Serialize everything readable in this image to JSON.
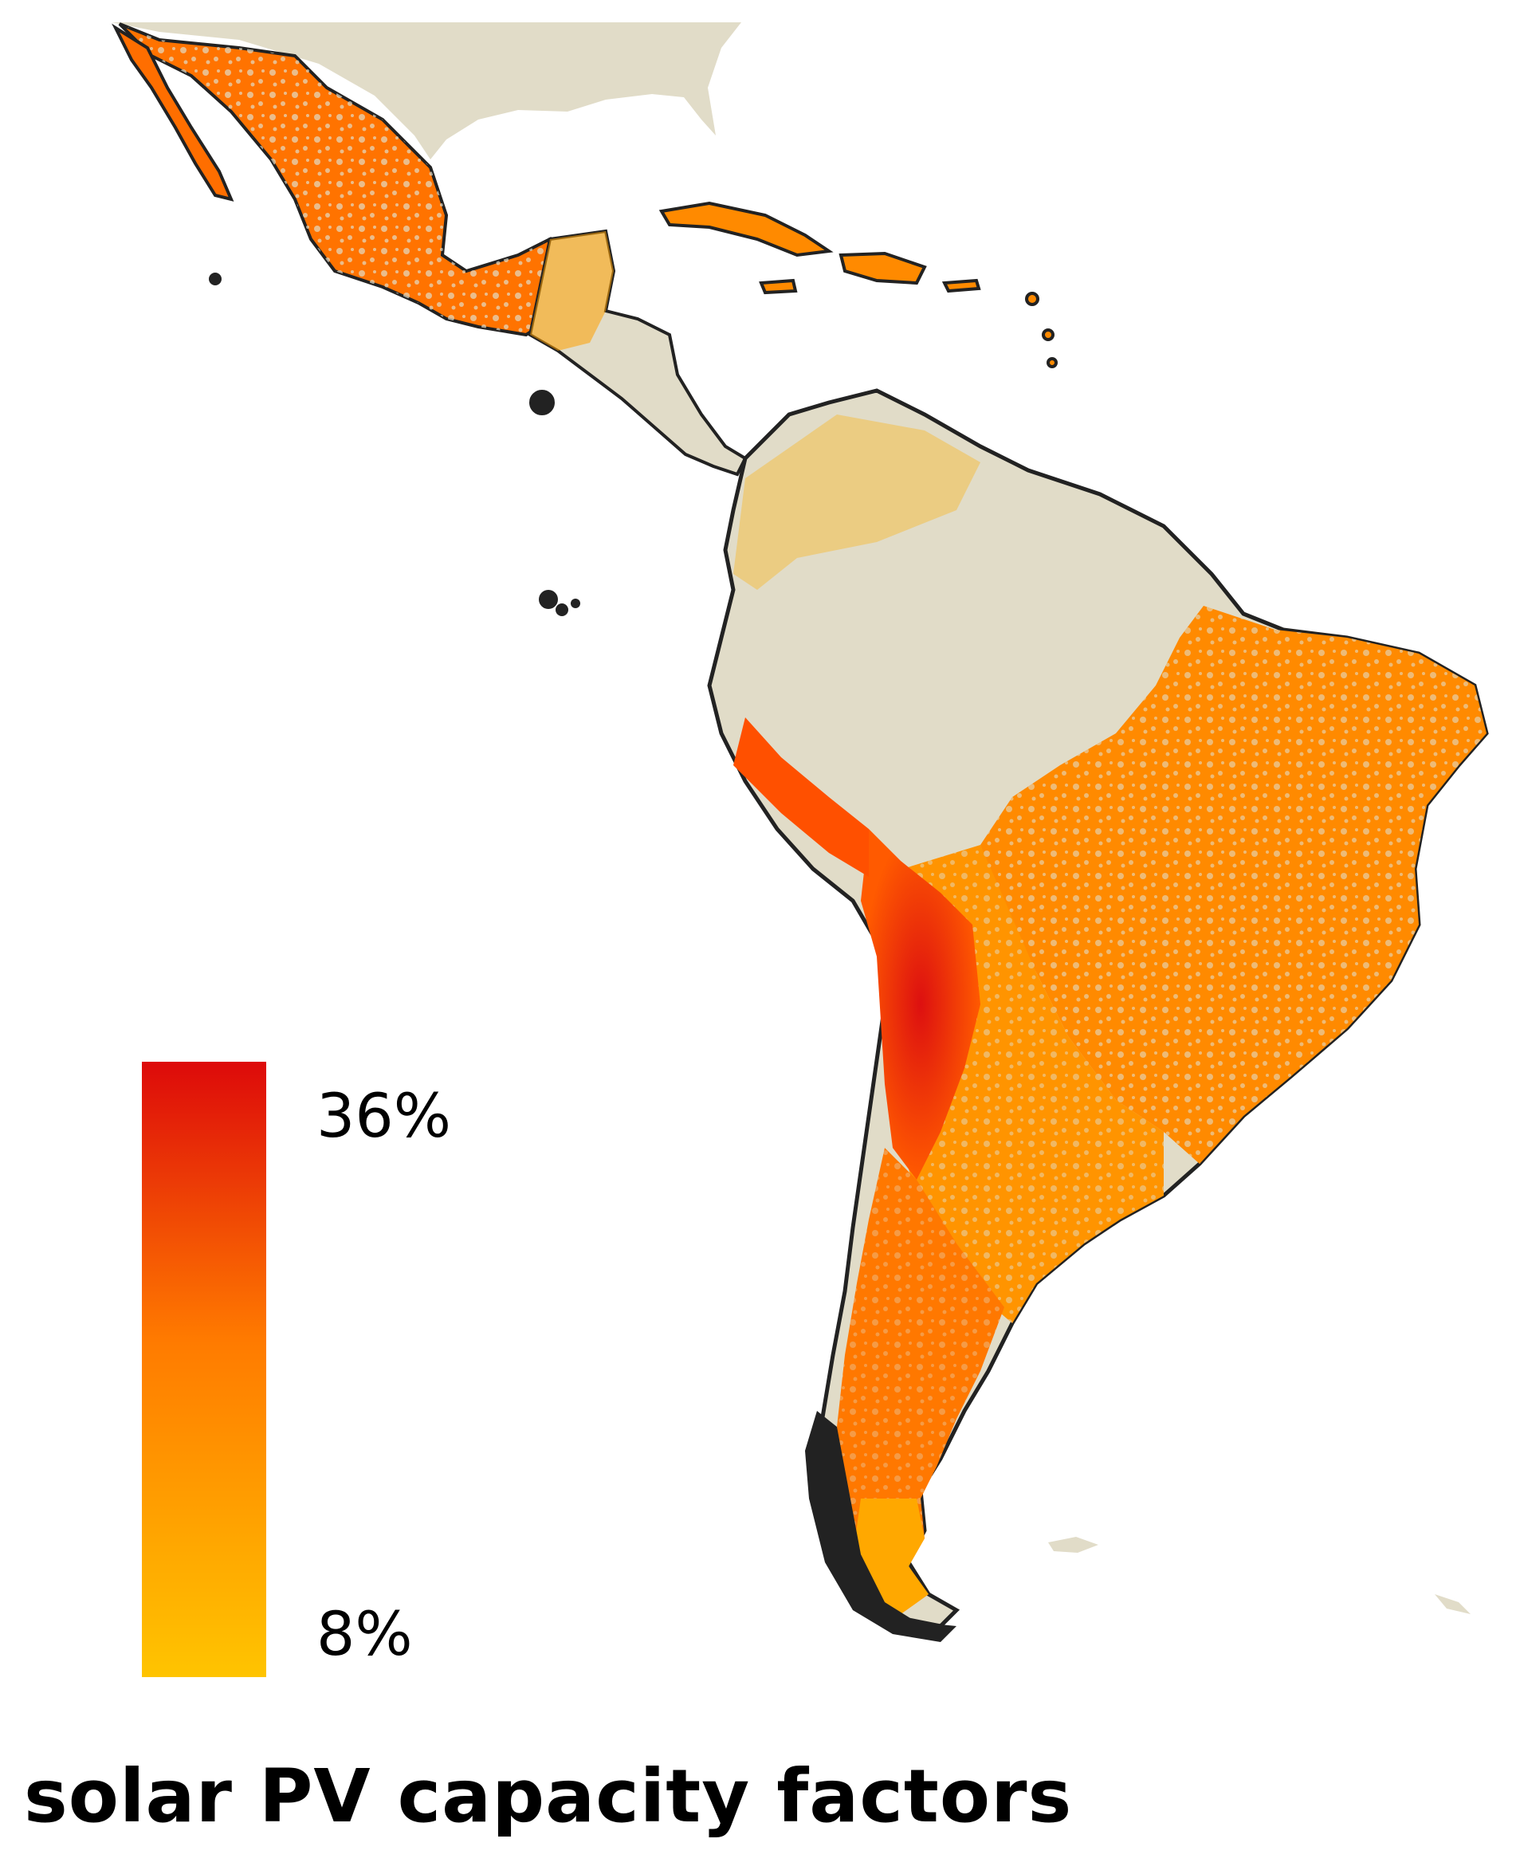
{
  "title": "solar PV capacity factors",
  "legend": {
    "max_label": "36%",
    "min_label": "8%",
    "max_value": 36,
    "min_value": 8,
    "unit": "%",
    "colors": {
      "max": "#dd0a0a",
      "mid": "#ff7a00",
      "min": "#ffc400"
    }
  },
  "colors": {
    "land_background": "#e1dcc8",
    "coastline": "#222222",
    "ocean": "#ffffff"
  },
  "layers": [
    "mexico",
    "central-america",
    "caribbean-islands",
    "south-america",
    "north-america-background"
  ]
}
